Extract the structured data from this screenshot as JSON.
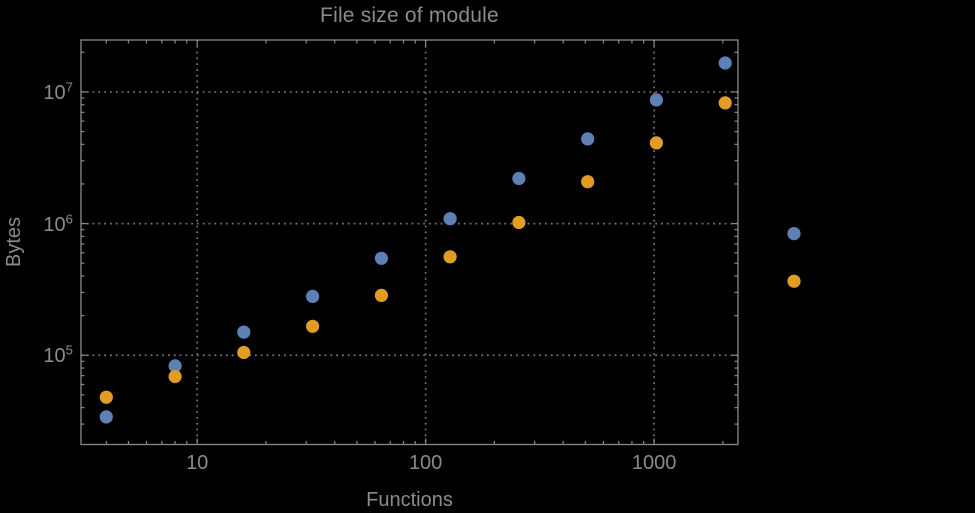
{
  "colors": {
    "background": "#000000",
    "frame": "#8a8a8a",
    "grid": "#757575",
    "text": "#8b8b8b",
    "series_blue": "#5E81B5",
    "series_orange": "#E19C24"
  },
  "chart_data": {
    "type": "scatter",
    "title": "File size of module",
    "xlabel": "Functions",
    "ylabel": "Bytes",
    "x_scale": "log",
    "y_scale": "log",
    "grid": "dotted",
    "legend": "none",
    "xlim": [
      3.1,
      2330
    ],
    "ylim": [
      21000,
      24800000
    ],
    "x": [
      4,
      8,
      16,
      32,
      64,
      128,
      256,
      512,
      1024,
      2048,
      4096
    ],
    "series": [
      {
        "name": "blue",
        "color": "#5E81B5",
        "values": [
          34000,
          83000,
          150000,
          280000,
          545000,
          1090000,
          2200000,
          4400000,
          8700000,
          16600000,
          840000
        ]
      },
      {
        "name": "orange",
        "color": "#E19C24",
        "values": [
          48000,
          69000,
          105000,
          166000,
          285000,
          560000,
          1020000,
          2080000,
          4100000,
          8250000,
          365000
        ]
      }
    ],
    "x_ticks": [
      {
        "label": "10",
        "value": 10
      },
      {
        "label": "100",
        "value": 100
      },
      {
        "label": "1000",
        "value": 1000
      }
    ],
    "y_ticks": [
      {
        "base": "10",
        "exp": "5",
        "value": 100000
      },
      {
        "base": "10",
        "exp": "6",
        "value": 1000000
      },
      {
        "base": "10",
        "exp": "7",
        "value": 10000000
      }
    ]
  }
}
